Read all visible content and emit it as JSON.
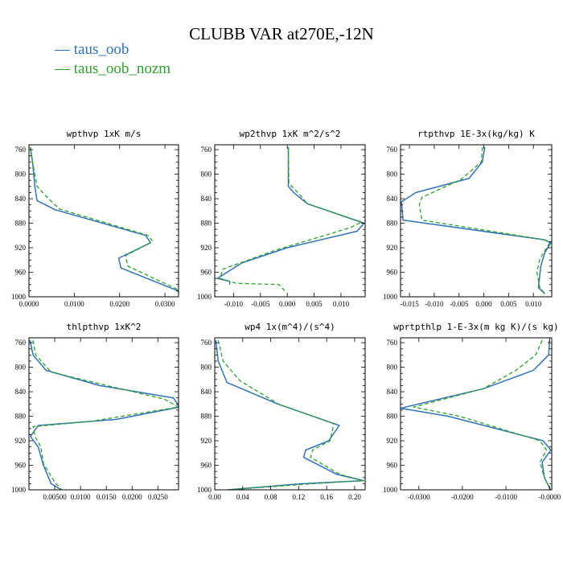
{
  "title": "CLUBB VAR at270E,-12N",
  "legend": [
    {
      "label": "taus_oob",
      "color": "#2f72b8",
      "dash": "—"
    },
    {
      "label": "taus_oob_nozm",
      "color": "#2ea02c",
      "dash": "—"
    }
  ],
  "chart_data": [
    {
      "type": "line",
      "title": "wpthvp  1xK m/s",
      "xticks": [
        0.0,
        0.01,
        0.02,
        0.03
      ],
      "xtick_labels": [
        "0.0000",
        "0.0100",
        "0.0200",
        "0.0300"
      ],
      "yticks": [
        760,
        800,
        840,
        880,
        920,
        960,
        1000
      ],
      "xlim": [
        0.0,
        0.033
      ],
      "ylim": [
        1000,
        752
      ],
      "series": [
        {
          "name": "taus_oob",
          "x": [
            0.0003,
            0.0008,
            0.0013,
            0.0018,
            0.0058,
            0.0258,
            0.0268,
            0.0198,
            0.0203,
            0.0328,
            0.0334
          ],
          "y": [
            756,
            780,
            820,
            843,
            858,
            900,
            912,
            937,
            953,
            990,
            1000
          ]
        },
        {
          "name": "taus_oob_nozm",
          "x": [
            0.0003,
            0.0008,
            0.0018,
            0.0043,
            0.0068,
            0.0263,
            0.0273,
            0.0213,
            0.0218,
            0.0328,
            0.0334
          ],
          "y": [
            756,
            780,
            820,
            840,
            857,
            900,
            910,
            933,
            950,
            988,
            1000
          ]
        }
      ]
    },
    {
      "type": "line",
      "title": "wp2thvp  1xK m^2/s^2",
      "xticks": [
        -0.01,
        -0.005,
        0.0,
        0.005,
        0.01
      ],
      "xtick_labels": [
        "-0.010",
        "-0.005",
        "0.000",
        "0.005",
        "0.010"
      ],
      "yticks": [
        760,
        800,
        840,
        880,
        920,
        960,
        1000
      ],
      "xlim": [
        -0.0135,
        0.0145
      ],
      "ylim": [
        1000,
        752
      ],
      "series": [
        {
          "name": "taus_oob",
          "x": [
            0.0002,
            0.0002,
            0.0012,
            0.0037,
            0.0143,
            0.013,
            0.0,
            -0.0085,
            -0.013,
            -0.0107,
            -0.0107
          ],
          "y": [
            756,
            820,
            830,
            848,
            880,
            893,
            920,
            945,
            970,
            975,
            980
          ]
        },
        {
          "name": "taus_oob_nozm",
          "x": [
            0.0002,
            0.0003,
            0.0023,
            0.0037,
            0.0138,
            0.0118,
            -0.0025,
            -0.012,
            -0.0125,
            -0.0095,
            -0.0015,
            -0.0005
          ],
          "y": [
            756,
            815,
            833,
            848,
            878,
            887,
            925,
            955,
            970,
            978,
            980,
            990
          ]
        }
      ]
    },
    {
      "type": "line",
      "title": "rtpthvp  1E-3x(kg/kg) K",
      "xticks": [
        -0.015,
        -0.01,
        -0.005,
        0.0,
        0.005,
        0.01
      ],
      "xtick_labels": [
        "-0.015",
        "-0.010",
        "-0.005",
        "0.000",
        "0.005",
        "0.010"
      ],
      "yticks": [
        760,
        800,
        840,
        880,
        920,
        960,
        1000
      ],
      "xlim": [
        -0.0168,
        0.0137
      ],
      "ylim": [
        1000,
        752
      ],
      "series": [
        {
          "name": "taus_oob",
          "x": [
            0.0002,
            -0.0003,
            -0.003,
            -0.0137,
            -0.0166,
            -0.0163,
            0.0122,
            0.0135,
            0.0123,
            0.0115,
            0.011,
            0.0123
          ],
          "y": [
            756,
            780,
            807,
            830,
            845,
            875,
            907,
            912,
            928,
            950,
            985,
            995
          ]
        },
        {
          "name": "taus_oob_nozm",
          "x": [
            -0.0003,
            -0.0005,
            -0.0045,
            -0.0125,
            -0.013,
            -0.0125,
            0.0122,
            0.0133,
            0.0113,
            0.0107,
            0.0113,
            0.0123
          ],
          "y": [
            756,
            780,
            808,
            838,
            850,
            875,
            907,
            912,
            938,
            960,
            985,
            995
          ]
        }
      ]
    },
    {
      "type": "line",
      "title": "thlpthvp  1xK^2",
      "xticks": [
        0.005,
        0.01,
        0.015,
        0.02,
        0.025
      ],
      "xtick_labels": [
        "0.00500",
        "0.0100",
        "0.0150",
        "0.0200",
        "0.0250"
      ],
      "yticks": [
        760,
        800,
        840,
        880,
        920,
        960,
        1000
      ],
      "xlim": [
        0.0,
        0.029
      ],
      "ylim": [
        1000,
        752
      ],
      "series": [
        {
          "name": "taus_oob",
          "x": [
            0.0002,
            0.0008,
            0.0033,
            0.0137,
            0.028,
            0.0292,
            0.017,
            0.0018,
            0.0003,
            0.0018,
            0.0028,
            0.0043,
            0.0063
          ],
          "y": [
            756,
            780,
            805,
            830,
            850,
            865,
            885,
            895,
            913,
            930,
            960,
            990,
            1000
          ]
        },
        {
          "name": "taus_oob_nozm",
          "x": [
            0.0008,
            0.0013,
            0.0043,
            0.0152,
            0.0262,
            0.029,
            0.0123,
            0.0008,
            0.0013,
            0.0023,
            0.0028,
            0.0048,
            0.0063
          ],
          "y": [
            756,
            780,
            808,
            830,
            852,
            865,
            888,
            897,
            915,
            930,
            957,
            985,
            1000
          ]
        }
      ]
    },
    {
      "type": "line",
      "title": "wp4  1x(m^4)/(s^4)",
      "xticks": [
        0.0,
        0.04,
        0.08,
        0.12,
        0.16,
        0.2
      ],
      "xtick_labels": [
        "0.00",
        "0.04",
        "0.08",
        "0.12",
        "0.16",
        "0.20"
      ],
      "yticks": [
        760,
        800,
        840,
        880,
        920,
        960,
        1000
      ],
      "xlim": [
        0.0,
        0.215
      ],
      "ylim": [
        1000,
        752
      ],
      "series": [
        {
          "name": "taus_oob",
          "x": [
            0.0015,
            0.005,
            0.0175,
            0.09,
            0.178,
            0.163,
            0.13,
            0.127,
            0.175,
            0.213,
            0.125,
            0.0185
          ],
          "y": [
            756,
            790,
            825,
            860,
            895,
            920,
            935,
            947,
            975,
            985,
            990,
            1000
          ]
        },
        {
          "name": "taus_oob_nozm",
          "x": [
            0.005,
            0.012,
            0.036,
            0.091,
            0.17,
            0.165,
            0.14,
            0.137,
            0.179,
            0.213,
            0.14,
            0.0185
          ],
          "y": [
            756,
            790,
            822,
            860,
            892,
            920,
            935,
            947,
            975,
            985,
            990,
            1000
          ]
        }
      ]
    },
    {
      "type": "line",
      "title": "wprtpthlp  1-E-3x(m kg K)/(s kg)",
      "xticks": [
        -0.03,
        -0.02,
        -0.01,
        0.0
      ],
      "xtick_labels": [
        "-0.0300",
        "-0.0200",
        "-0.0100",
        "-0.0000"
      ],
      "yticks": [
        760,
        800,
        840,
        880,
        920,
        960,
        1000
      ],
      "xlim": [
        -0.0342,
        0.0005
      ],
      "ylim": [
        1000,
        752
      ],
      "series": [
        {
          "name": "taus_oob",
          "x": [
            0.0,
            -0.0002,
            -0.0037,
            -0.0152,
            -0.0342,
            -0.0233,
            -0.0015,
            0.0003,
            -0.0017,
            -0.0012,
            0.0002
          ],
          "y": [
            756,
            780,
            805,
            835,
            867,
            880,
            920,
            935,
            955,
            980,
            1000
          ]
        },
        {
          "name": "taus_oob_nozm",
          "x": [
            -0.0017,
            -0.0032,
            -0.0077,
            -0.0152,
            -0.0312,
            -0.0207,
            -0.0022,
            -0.0007,
            -0.0022,
            -0.0012,
            0.0002
          ],
          "y": [
            756,
            780,
            805,
            835,
            865,
            880,
            920,
            935,
            955,
            980,
            1000
          ]
        }
      ]
    }
  ]
}
